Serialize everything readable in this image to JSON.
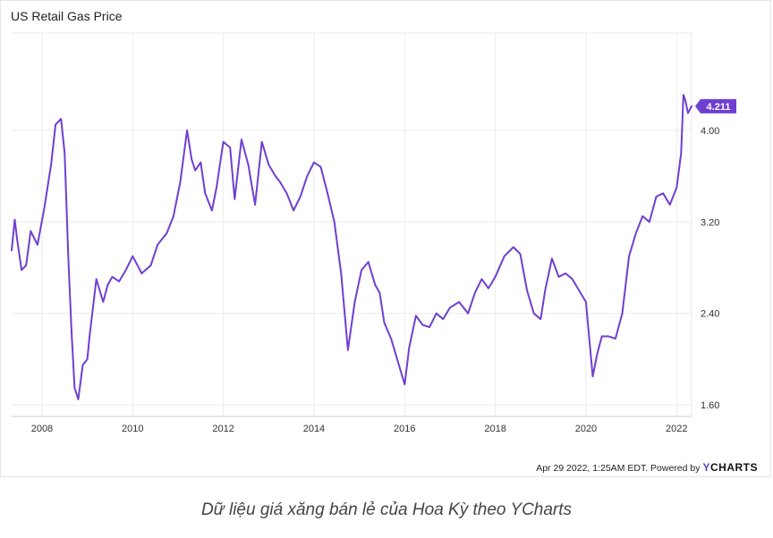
{
  "chart_data": {
    "type": "line",
    "title": "US Retail Gas Price",
    "xlabel": "",
    "ylabel": "",
    "x_ticks": [
      "2008",
      "2010",
      "2012",
      "2014",
      "2016",
      "2018",
      "2020",
      "2022"
    ],
    "y_ticks": [
      "1.60",
      "2.40",
      "3.20",
      "4.00"
    ],
    "ylim": [
      1.5,
      4.85
    ],
    "xlim": [
      2007.33,
      2022.33
    ],
    "grid": true,
    "last_value_label": "4.211",
    "color": "#6f3fd0",
    "series": [
      {
        "x": [
          2007.33,
          2007.4,
          2007.45,
          2007.55,
          2007.65,
          2007.75,
          2007.9,
          2008.05,
          2008.2,
          2008.3,
          2008.42,
          2008.5,
          2008.58,
          2008.65,
          2008.72,
          2008.8,
          2008.9,
          2009.0,
          2009.05,
          2009.2,
          2009.35,
          2009.45,
          2009.55,
          2009.7,
          2009.85,
          2010.0,
          2010.2,
          2010.4,
          2010.55,
          2010.75,
          2010.9,
          2011.05,
          2011.2,
          2011.3,
          2011.38,
          2011.5,
          2011.6,
          2011.75,
          2011.85,
          2012.0,
          2012.15,
          2012.25,
          2012.4,
          2012.55,
          2012.7,
          2012.85,
          2013.0,
          2013.15,
          2013.25,
          2013.4,
          2013.55,
          2013.7,
          2013.85,
          2014.0,
          2014.15,
          2014.3,
          2014.45,
          2014.6,
          2014.75,
          2014.9,
          2015.05,
          2015.2,
          2015.35,
          2015.45,
          2015.55,
          2015.7,
          2015.85,
          2016.0,
          2016.1,
          2016.25,
          2016.4,
          2016.55,
          2016.7,
          2016.85,
          2017.0,
          2017.2,
          2017.4,
          2017.55,
          2017.7,
          2017.85,
          2018.0,
          2018.2,
          2018.4,
          2018.55,
          2018.7,
          2018.85,
          2019.0,
          2019.1,
          2019.25,
          2019.4,
          2019.55,
          2019.7,
          2019.85,
          2020.0,
          2020.15,
          2020.25,
          2020.35,
          2020.5,
          2020.65,
          2020.8,
          2020.95,
          2021.1,
          2021.25,
          2021.4,
          2021.55,
          2021.7,
          2021.85,
          2022.0,
          2022.1,
          2022.15,
          2022.2,
          2022.25,
          2022.33
        ],
        "values": [
          2.95,
          3.22,
          3.05,
          2.78,
          2.82,
          3.12,
          3.0,
          3.32,
          3.7,
          4.05,
          4.1,
          3.8,
          2.9,
          2.25,
          1.75,
          1.65,
          1.95,
          2.0,
          2.2,
          2.7,
          2.5,
          2.65,
          2.72,
          2.68,
          2.78,
          2.9,
          2.75,
          2.82,
          3.0,
          3.1,
          3.25,
          3.55,
          4.0,
          3.75,
          3.65,
          3.72,
          3.45,
          3.3,
          3.5,
          3.9,
          3.85,
          3.4,
          3.92,
          3.7,
          3.35,
          3.9,
          3.7,
          3.6,
          3.55,
          3.45,
          3.3,
          3.42,
          3.6,
          3.72,
          3.68,
          3.45,
          3.2,
          2.75,
          2.08,
          2.5,
          2.78,
          2.85,
          2.65,
          2.58,
          2.32,
          2.18,
          1.98,
          1.78,
          2.1,
          2.38,
          2.3,
          2.28,
          2.4,
          2.35,
          2.45,
          2.5,
          2.4,
          2.58,
          2.7,
          2.62,
          2.72,
          2.9,
          2.98,
          2.92,
          2.6,
          2.4,
          2.35,
          2.6,
          2.88,
          2.72,
          2.75,
          2.7,
          2.6,
          2.5,
          1.85,
          2.05,
          2.2,
          2.2,
          2.18,
          2.4,
          2.9,
          3.1,
          3.25,
          3.2,
          3.42,
          3.45,
          3.35,
          3.5,
          3.8,
          4.31,
          4.25,
          4.15,
          4.211
        ]
      }
    ]
  },
  "footer": {
    "timestamp": "Apr 29 2022, 1:25AM EDT. Powered by",
    "brand_y": "Y",
    "brand_rest": "CHARTS"
  },
  "caption": "Dữ liệu giá xăng bán lẻ của Hoa Kỳ theo YCharts"
}
